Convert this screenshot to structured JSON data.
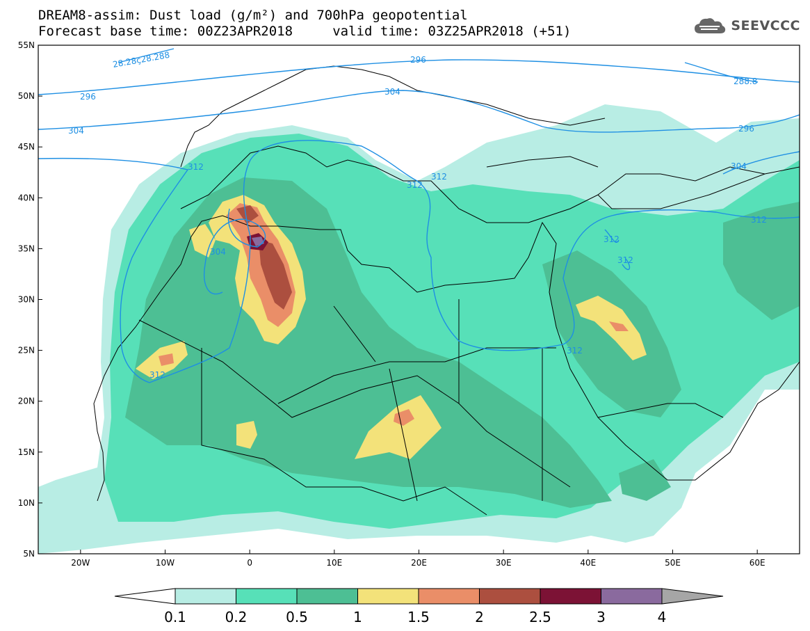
{
  "header": {
    "title_line1": "DREAM8-assim: Dust load (g/m²) and 700hPa geopotential",
    "title_line2": "Forecast base time: 00Z23APR2018     valid time: 03Z25APR2018 (+51)",
    "brand": "SEEVCCC",
    "brand_icon": "cloud-icon"
  },
  "map": {
    "lon_ticks": [
      "20W",
      "10W",
      "0",
      "10E",
      "20E",
      "30E",
      "40E",
      "50E",
      "60E"
    ],
    "lat_ticks": [
      "55N",
      "50N",
      "45N",
      "40N",
      "35N",
      "30N",
      "25N",
      "20N",
      "15N",
      "10N",
      "5N"
    ],
    "extent": {
      "lon_min": -25,
      "lon_max": 65,
      "lat_min": 5,
      "lat_max": 55
    },
    "contour_labels": {
      "c296a": "296",
      "c296b": "296",
      "c296c": "296",
      "c304a": "304",
      "c304b": "304",
      "c304c": "304",
      "c304d": "304",
      "c312a": "312",
      "c312b": "312",
      "c312c": "312",
      "c312d": "312",
      "c312e": "312",
      "c312f": "312",
      "c312g": "312",
      "c288a": "28.28ç28.288",
      "c288b": "288.8"
    }
  },
  "colorbar": {
    "labels": [
      "0.1",
      "0.2",
      "0.5",
      "1",
      "1.5",
      "2",
      "2.5",
      "3",
      "4"
    ],
    "colors": [
      "#ffffff",
      "#b8ede4",
      "#57e0b8",
      "#4dbf94",
      "#f3e27a",
      "#ea8e68",
      "#ac4f3f",
      "#7c1235",
      "#8a6a9e",
      "#a6a6a6"
    ]
  },
  "colors": {
    "contour": "#1e8fe3",
    "dust_01": "#b8ede4",
    "dust_02": "#57e0b8",
    "dust_05": "#4dbf94",
    "dust_1": "#f3e27a",
    "dust_15": "#ea8e68",
    "dust_2": "#ac4f3f",
    "dust_25": "#7c1235",
    "dust_3": "#8a6a9e"
  }
}
